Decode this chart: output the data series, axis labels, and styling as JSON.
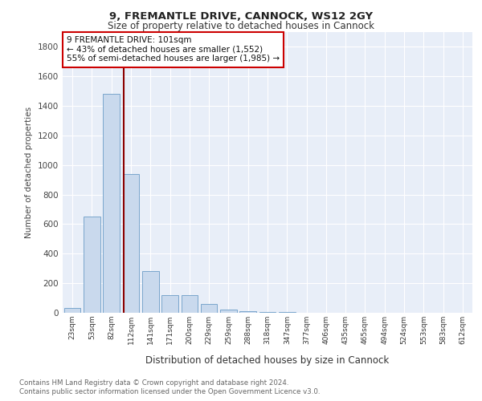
{
  "title1": "9, FREMANTLE DRIVE, CANNOCK, WS12 2GY",
  "title2": "Size of property relative to detached houses in Cannock",
  "xlabel": "Distribution of detached houses by size in Cannock",
  "ylabel": "Number of detached properties",
  "categories": [
    "23sqm",
    "53sqm",
    "82sqm",
    "112sqm",
    "141sqm",
    "171sqm",
    "200sqm",
    "229sqm",
    "259sqm",
    "288sqm",
    "318sqm",
    "347sqm",
    "377sqm",
    "406sqm",
    "435sqm",
    "465sqm",
    "494sqm",
    "524sqm",
    "553sqm",
    "583sqm",
    "612sqm"
  ],
  "values": [
    35,
    650,
    1480,
    940,
    285,
    120,
    120,
    60,
    20,
    10,
    5,
    5,
    0,
    0,
    0,
    0,
    0,
    0,
    0,
    0,
    0
  ],
  "bar_color": "#c9d9ed",
  "bar_edge_color": "#7aa6cc",
  "vline_color": "#8b0000",
  "annotation_text": "9 FREMANTLE DRIVE: 101sqm\n← 43% of detached houses are smaller (1,552)\n55% of semi-detached houses are larger (1,985) →",
  "annotation_box_color": "#ffffff",
  "annotation_box_edge": "#cc0000",
  "ylim": [
    0,
    1900
  ],
  "yticks": [
    0,
    200,
    400,
    600,
    800,
    1000,
    1200,
    1400,
    1600,
    1800
  ],
  "footer1": "Contains HM Land Registry data © Crown copyright and database right 2024.",
  "footer2": "Contains public sector information licensed under the Open Government Licence v3.0.",
  "bg_color": "#ffffff",
  "plot_bg_color": "#e8eef8"
}
